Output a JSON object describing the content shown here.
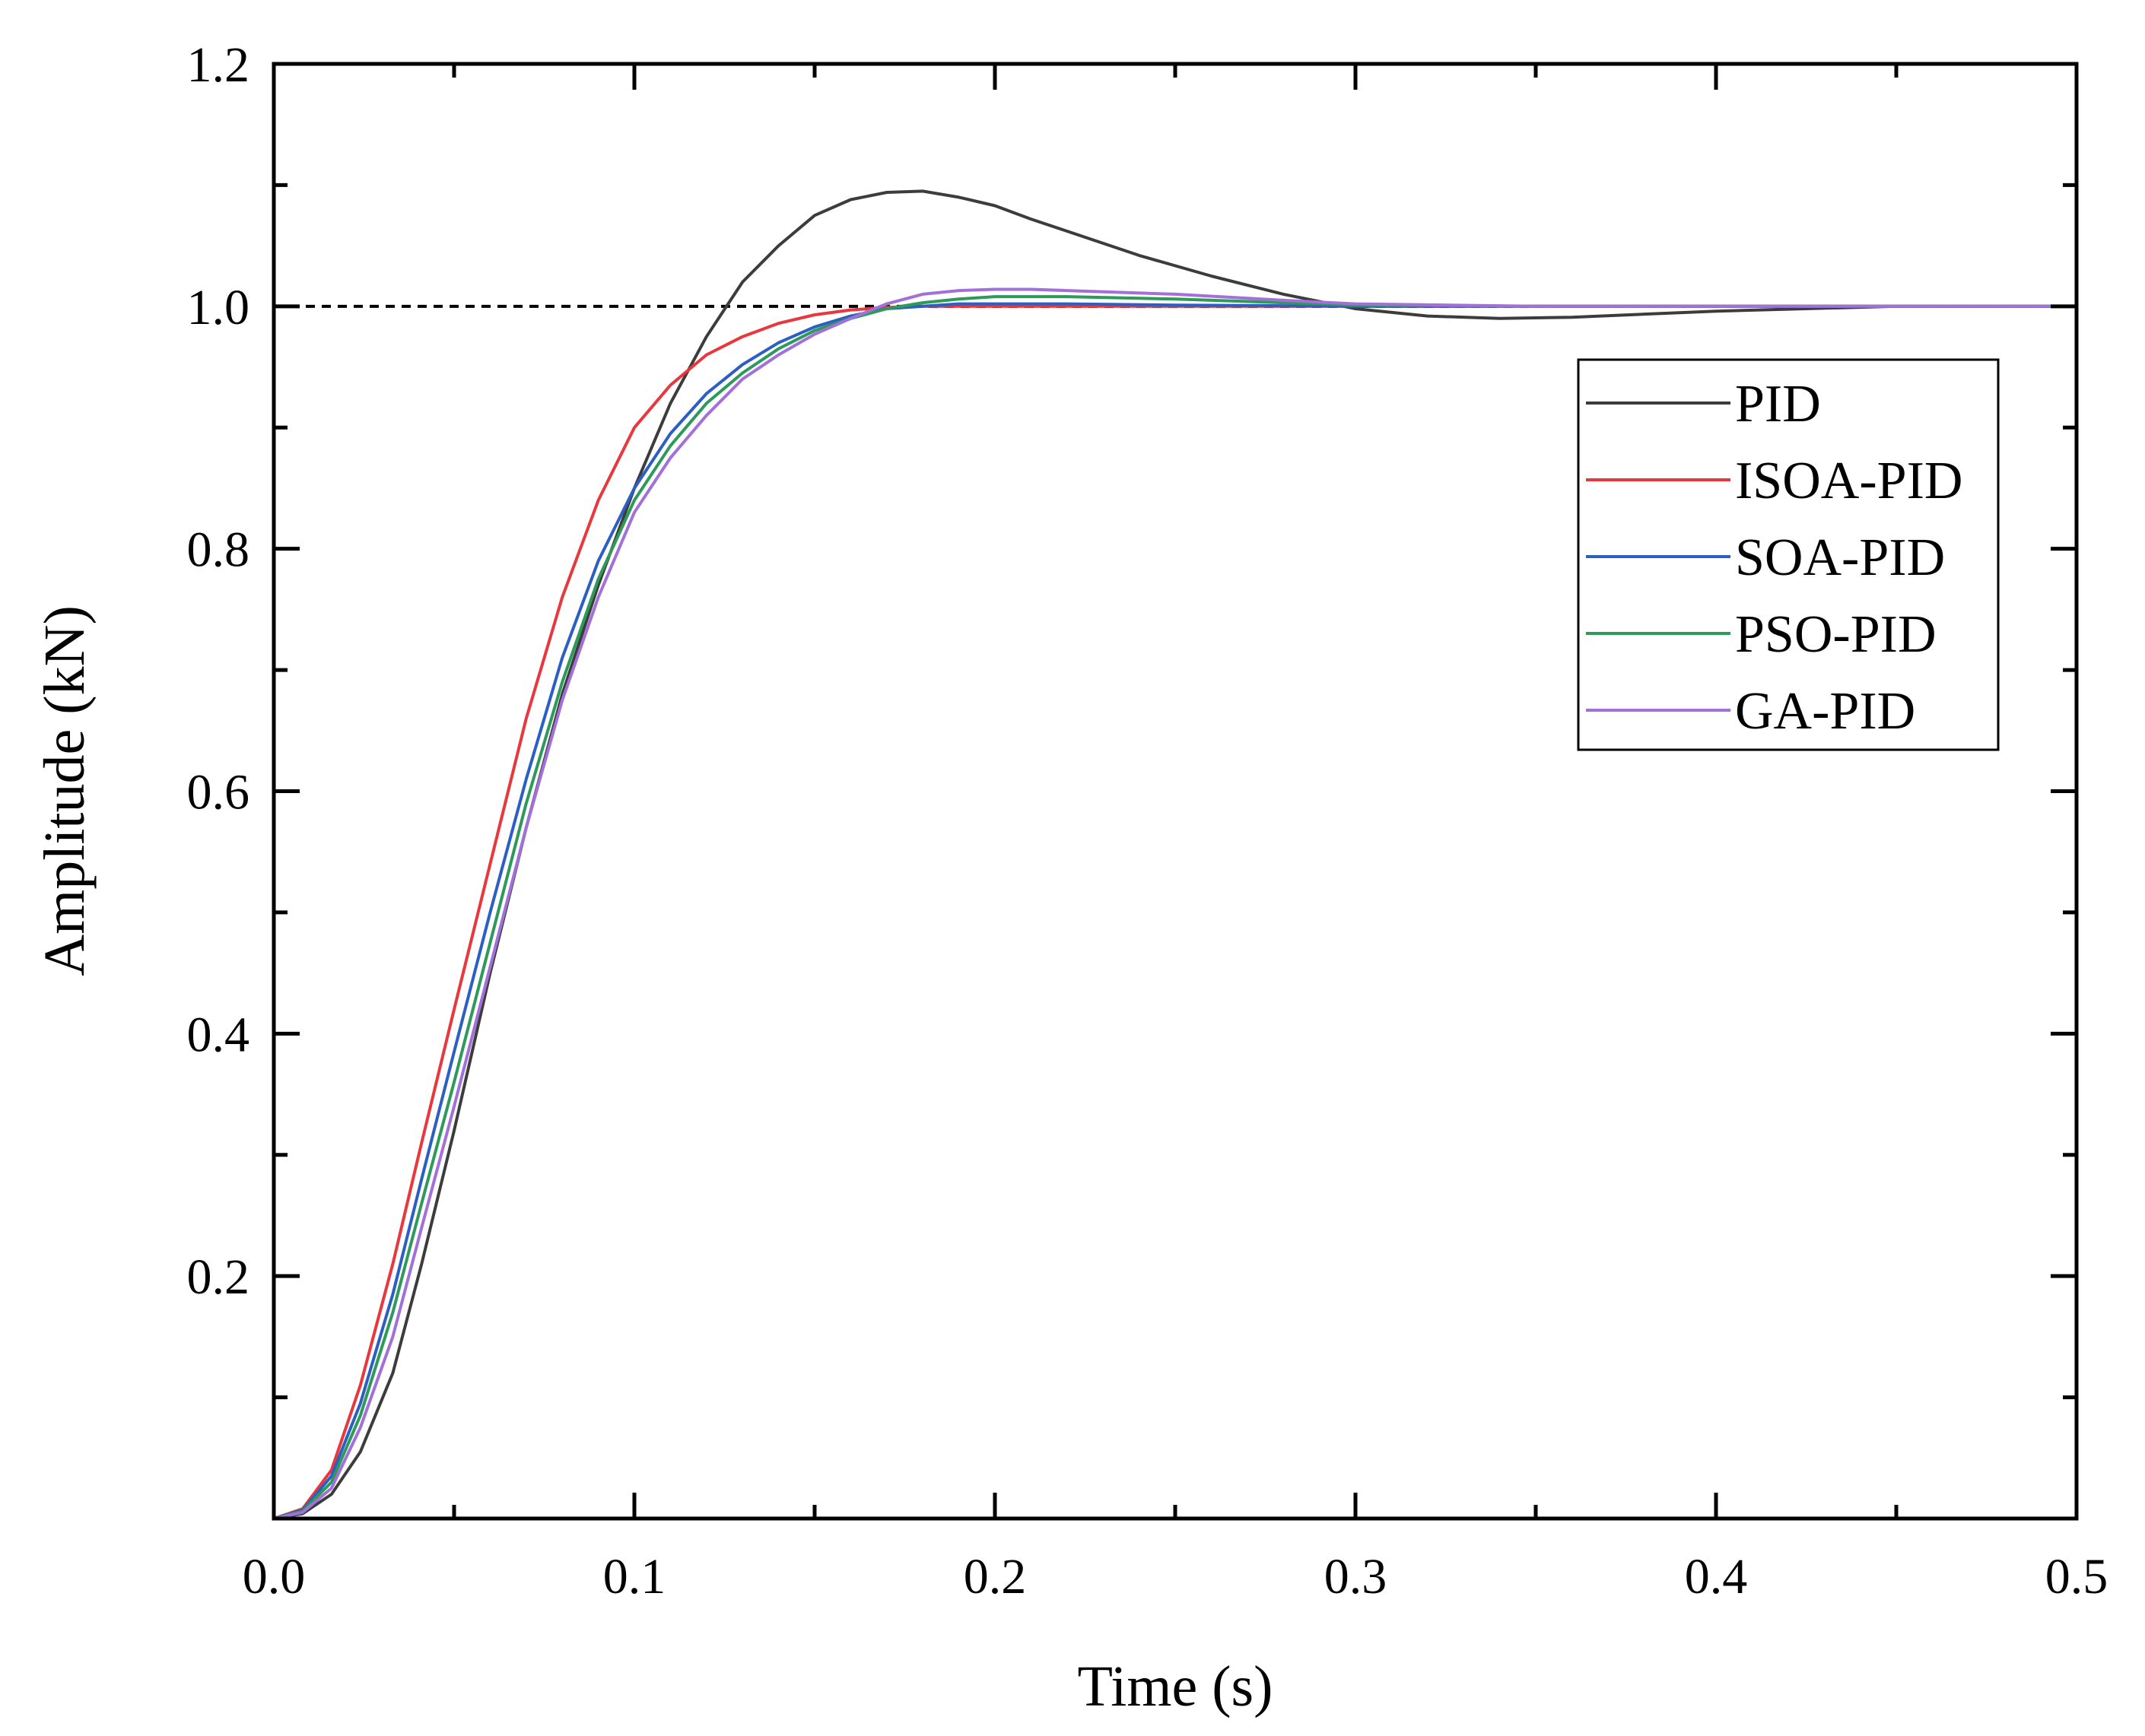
{
  "chart_data": {
    "type": "line",
    "title": "",
    "xlabel": "Time (s)",
    "ylabel": "Amplitude (kN)",
    "xlim": [
      0,
      0.5
    ],
    "ylim": [
      0,
      1.2
    ],
    "x_ticks": [
      {
        "value": 0.0,
        "label": "0.0"
      },
      {
        "value": 0.1,
        "label": "0.1"
      },
      {
        "value": 0.2,
        "label": "0.2"
      },
      {
        "value": 0.3,
        "label": "0.3"
      },
      {
        "value": 0.4,
        "label": "0.4"
      },
      {
        "value": 0.5,
        "label": "0.5"
      }
    ],
    "x_minor_ticks": [
      0.05,
      0.15,
      0.25,
      0.35,
      0.45
    ],
    "y_ticks": [
      {
        "value": 0.2,
        "label": "0.2"
      },
      {
        "value": 0.4,
        "label": "0.4"
      },
      {
        "value": 0.6,
        "label": "0.6"
      },
      {
        "value": 0.8,
        "label": "0.8"
      },
      {
        "value": 1.0,
        "label": "1.0"
      },
      {
        "value": 1.2,
        "label": "1.2"
      }
    ],
    "y_minor_ticks": [
      0.1,
      0.3,
      0.5,
      0.7,
      0.9,
      1.1
    ],
    "reference_line": {
      "y": 1.0,
      "style": "dashed",
      "color": "#000000"
    },
    "grid": false,
    "legend_position": "upper-right",
    "series": [
      {
        "name": "PID",
        "color": "#3c3c3c",
        "x": [
          0,
          0.008,
          0.016,
          0.024,
          0.033,
          0.041,
          0.05,
          0.06,
          0.07,
          0.08,
          0.09,
          0.1,
          0.11,
          0.12,
          0.13,
          0.14,
          0.15,
          0.16,
          0.17,
          0.18,
          0.19,
          0.2,
          0.21,
          0.22,
          0.24,
          0.26,
          0.28,
          0.3,
          0.32,
          0.34,
          0.36,
          0.4,
          0.45,
          0.5
        ],
        "y": [
          0,
          0.004,
          0.02,
          0.055,
          0.12,
          0.21,
          0.32,
          0.45,
          0.57,
          0.68,
          0.77,
          0.85,
          0.92,
          0.975,
          1.02,
          1.05,
          1.075,
          1.088,
          1.094,
          1.095,
          1.09,
          1.083,
          1.072,
          1.062,
          1.042,
          1.025,
          1.01,
          0.998,
          0.992,
          0.99,
          0.991,
          0.996,
          1.0,
          1.0
        ]
      },
      {
        "name": "ISOA-PID",
        "color": "#e8383d",
        "x": [
          0,
          0.008,
          0.016,
          0.024,
          0.033,
          0.041,
          0.05,
          0.06,
          0.07,
          0.08,
          0.09,
          0.1,
          0.11,
          0.12,
          0.13,
          0.14,
          0.15,
          0.16,
          0.17,
          0.18,
          0.2,
          0.25,
          0.3,
          0.4,
          0.5
        ],
        "y": [
          0,
          0.008,
          0.04,
          0.11,
          0.21,
          0.31,
          0.42,
          0.54,
          0.66,
          0.76,
          0.84,
          0.9,
          0.935,
          0.96,
          0.975,
          0.986,
          0.993,
          0.997,
          0.999,
          1.0,
          1.0,
          1.0,
          1.0,
          1.0,
          1.0
        ]
      },
      {
        "name": "SOA-PID",
        "color": "#2b5fc4",
        "x": [
          0,
          0.008,
          0.016,
          0.024,
          0.033,
          0.041,
          0.05,
          0.06,
          0.07,
          0.08,
          0.09,
          0.1,
          0.11,
          0.12,
          0.13,
          0.14,
          0.15,
          0.16,
          0.17,
          0.18,
          0.19,
          0.2,
          0.22,
          0.25,
          0.3,
          0.35,
          0.4,
          0.5
        ],
        "y": [
          0,
          0.007,
          0.035,
          0.095,
          0.185,
          0.28,
          0.385,
          0.5,
          0.61,
          0.71,
          0.79,
          0.85,
          0.895,
          0.928,
          0.952,
          0.97,
          0.983,
          0.992,
          0.998,
          1.0,
          1.002,
          1.002,
          1.002,
          1.001,
          1.0,
          1.0,
          1.0,
          1.0
        ]
      },
      {
        "name": "PSO-PID",
        "color": "#2e9a5a",
        "x": [
          0,
          0.008,
          0.016,
          0.024,
          0.033,
          0.041,
          0.05,
          0.06,
          0.07,
          0.08,
          0.09,
          0.1,
          0.11,
          0.12,
          0.13,
          0.14,
          0.15,
          0.16,
          0.17,
          0.18,
          0.19,
          0.2,
          0.21,
          0.22,
          0.25,
          0.28,
          0.3,
          0.35,
          0.4,
          0.5
        ],
        "y": [
          0,
          0.006,
          0.03,
          0.085,
          0.17,
          0.26,
          0.36,
          0.475,
          0.59,
          0.69,
          0.775,
          0.84,
          0.885,
          0.92,
          0.945,
          0.965,
          0.98,
          0.99,
          0.998,
          1.003,
          1.006,
          1.008,
          1.008,
          1.008,
          1.006,
          1.003,
          1.001,
          1.0,
          1.0,
          1.0
        ]
      },
      {
        "name": "GA-PID",
        "color": "#a36fd8",
        "x": [
          0,
          0.008,
          0.016,
          0.024,
          0.033,
          0.041,
          0.05,
          0.06,
          0.07,
          0.08,
          0.09,
          0.1,
          0.11,
          0.12,
          0.13,
          0.14,
          0.15,
          0.16,
          0.17,
          0.18,
          0.19,
          0.2,
          0.21,
          0.22,
          0.25,
          0.28,
          0.3,
          0.35,
          0.4,
          0.5
        ],
        "y": [
          0,
          0.005,
          0.025,
          0.075,
          0.15,
          0.24,
          0.34,
          0.455,
          0.57,
          0.675,
          0.76,
          0.83,
          0.875,
          0.91,
          0.94,
          0.96,
          0.977,
          0.99,
          1.002,
          1.01,
          1.013,
          1.014,
          1.014,
          1.013,
          1.01,
          1.005,
          1.002,
          1.0,
          1.0,
          1.0
        ]
      }
    ]
  }
}
